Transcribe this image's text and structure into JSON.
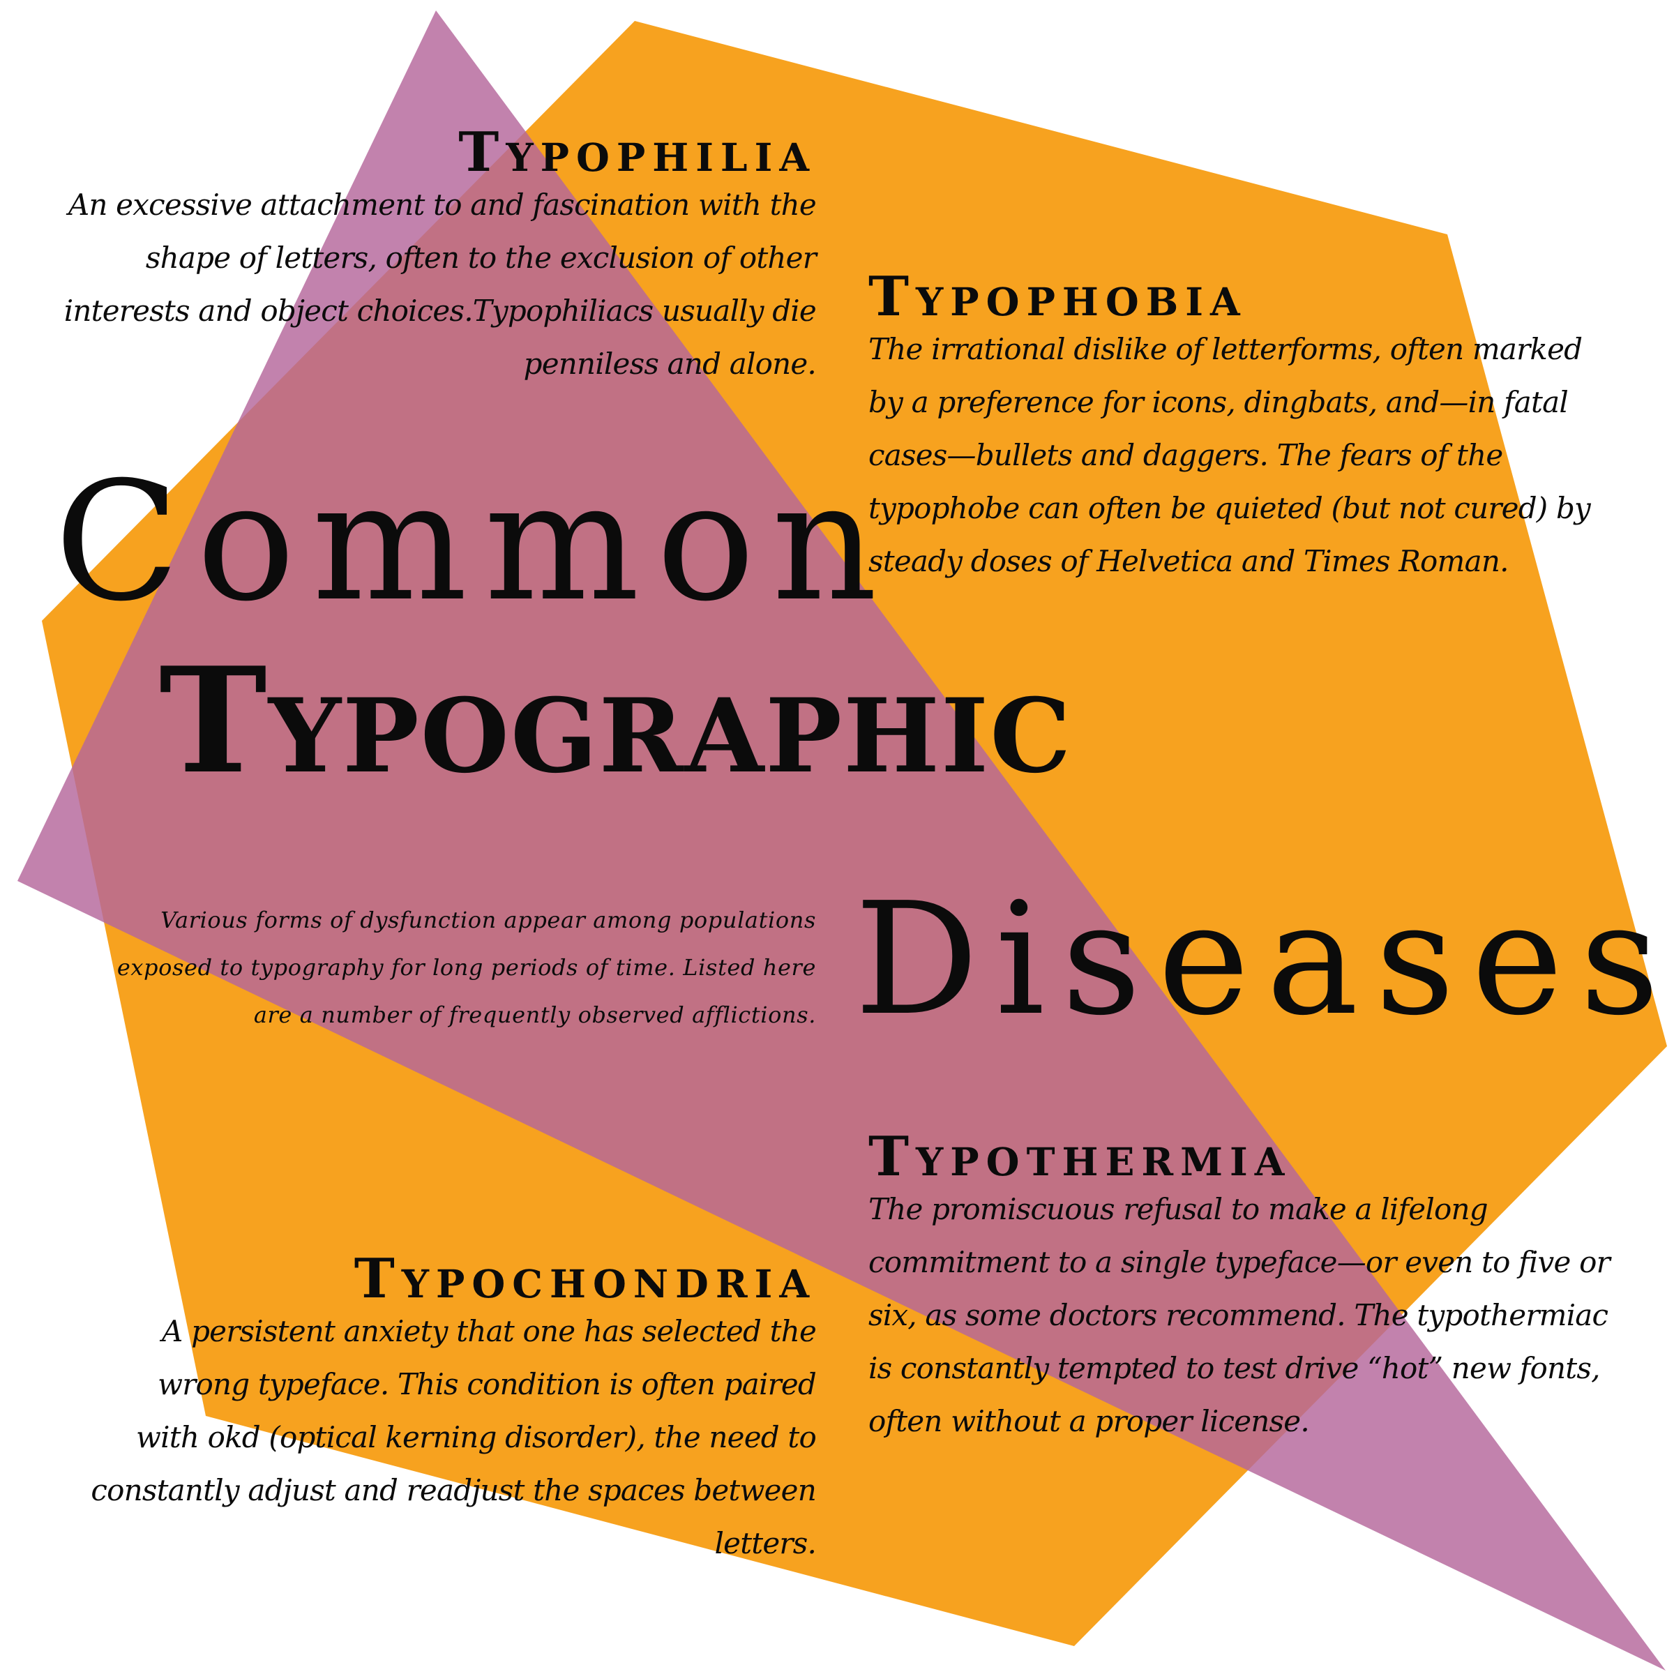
{
  "colors": {
    "background": "#ffffff",
    "hexagon": "#f7a21f",
    "triangle": "#b4679b",
    "text": "#0b0b0b"
  },
  "title": {
    "line1": "Common",
    "line2": "Typographic",
    "line3": "Diseases"
  },
  "intro": "Various forms of dysfunction appear among populations exposed to typography for long periods of time. Listed here are a number of frequently observed afflictions.",
  "entries": [
    {
      "heading": "Typophilia",
      "text": "An excessive attachment to and fascination with the shape of letters, often to the exclusion of other interests and object choices.Typophiliacs usually die penniless and alone."
    },
    {
      "heading": "Typophobia",
      "text": "The irrational dislike of letterforms, often marked by a preference for icons, dingbats, and—in fatal cases—bullets and daggers. The fears of the typophobe can often be quieted (but not cured) by steady doses of Helvetica and Times Roman."
    },
    {
      "heading": "Typothermia",
      "text": "The promiscuous refusal to make a lifelong commitment to a single typeface—or even to five or six, as some doctors recommend. The typothermiac is constantly tempted to test drive “hot” new fonts, often without a proper license."
    },
    {
      "heading": "Typochondria",
      "text": "A persistent anxiety that one has selected the wrong typeface. This condition is often paired with okd (optical kerning disorder), the need to constantly adjust and readjust the spaces between letters."
    }
  ]
}
